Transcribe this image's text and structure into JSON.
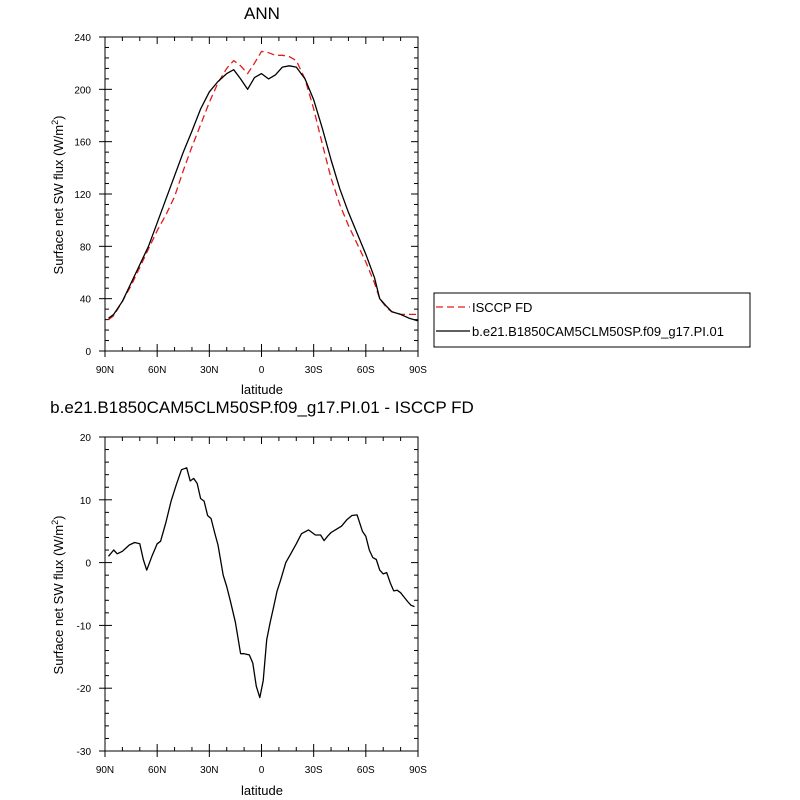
{
  "chart_data": [
    {
      "type": "line",
      "title": "ANN",
      "xlabel": "latitude",
      "ylabel": "Surface net SW flux (W/m",
      "ylabel_superscript": "2",
      "ylabel_suffix": ")",
      "x_ticks": [
        90,
        60,
        30,
        0,
        -30,
        -60,
        -90
      ],
      "x_tick_labels": [
        "90N",
        "60N",
        "30N",
        "0",
        "30S",
        "60S",
        "90S"
      ],
      "xlim": [
        90,
        -90
      ],
      "ylim": [
        0,
        240
      ],
      "y_ticks": [
        0,
        40,
        80,
        120,
        160,
        200,
        240
      ],
      "y_tick_labels": [
        "0",
        "40",
        "80",
        "120",
        "160",
        "200",
        "240"
      ],
      "legend_position": "right",
      "series": [
        {
          "name": "ISCCP FD",
          "color": "#e41a1c",
          "dash": "dashed",
          "x": [
            88,
            85,
            80,
            75,
            70,
            65,
            60,
            55,
            50,
            45,
            40,
            35,
            30,
            25,
            20,
            16,
            12,
            8,
            4,
            0,
            -4,
            -8,
            -12,
            -16,
            -20,
            -25,
            -30,
            -35,
            -40,
            -45,
            -50,
            -55,
            -60,
            -65,
            -68,
            -72,
            -75,
            -80,
            -85,
            -90
          ],
          "values": [
            24,
            27,
            38,
            50,
            64,
            78,
            92,
            104,
            118,
            138,
            156,
            173,
            190,
            205,
            216,
            222,
            218,
            212,
            220,
            229,
            228,
            226,
            226,
            225,
            222,
            208,
            185,
            158,
            132,
            112,
            96,
            82,
            68,
            52,
            40,
            33,
            30,
            28,
            28,
            28
          ]
        },
        {
          "name": "b.e21.B1850CAM5CLM50SP.f09_g17.PI.01",
          "color": "#000000",
          "dash": "solid",
          "x": [
            88,
            85,
            80,
            75,
            70,
            65,
            60,
            55,
            50,
            45,
            40,
            35,
            30,
            25,
            20,
            16,
            12,
            8,
            4,
            0,
            -4,
            -8,
            -12,
            -16,
            -20,
            -25,
            -30,
            -35,
            -40,
            -45,
            -50,
            -55,
            -60,
            -65,
            -68,
            -72,
            -75,
            -80,
            -85,
            -90
          ],
          "values": [
            25,
            28,
            38,
            52,
            66,
            80,
            98,
            116,
            134,
            152,
            168,
            185,
            198,
            206,
            212,
            215,
            208,
            200,
            209,
            212,
            208,
            211,
            217,
            218,
            217,
            208,
            192,
            170,
            146,
            124,
            106,
            90,
            74,
            56,
            40,
            34,
            30,
            28,
            25,
            23
          ]
        }
      ]
    },
    {
      "type": "line",
      "title": "b.e21.B1850CAM5CLM50SP.f09_g17.PI.01 - ISCCP FD",
      "xlabel": "latitude",
      "ylabel": "Surface net SW flux (W/m",
      "ylabel_superscript": "2",
      "ylabel_suffix": ")",
      "x_ticks": [
        90,
        60,
        30,
        0,
        -30,
        -60,
        -90
      ],
      "x_tick_labels": [
        "90N",
        "60N",
        "30N",
        "0",
        "30S",
        "60S",
        "90S"
      ],
      "xlim": [
        90,
        -90
      ],
      "ylim": [
        -30,
        20
      ],
      "y_ticks": [
        -30,
        -20,
        -10,
        0,
        10,
        20
      ],
      "y_tick_labels": [
        "-30",
        "-20",
        "-10",
        "0",
        "10",
        "20"
      ],
      "series": [
        {
          "name": "",
          "color": "#000000",
          "dash": "solid",
          "x": [
            88,
            85,
            83,
            80,
            76,
            73,
            70,
            68,
            66,
            63,
            60,
            58,
            55,
            52,
            49,
            46,
            43,
            41,
            39,
            37,
            35,
            33,
            31,
            29,
            27,
            25,
            22,
            20,
            18,
            15,
            12,
            10,
            7,
            5,
            3,
            1,
            -1,
            -3,
            -5,
            -7,
            -9,
            -11,
            -14,
            -17,
            -20,
            -23,
            -27,
            -31,
            -34,
            -36,
            -38,
            -40,
            -43,
            -46,
            -49,
            -52,
            -55,
            -58,
            -60,
            -62,
            -64,
            -66,
            -68,
            -70,
            -72,
            -74,
            -76,
            -78,
            -80,
            -82,
            -84,
            -86,
            -88
          ],
          "values": [
            1.0,
            2.0,
            1.4,
            1.8,
            2.8,
            3.2,
            3.0,
            0.5,
            -1.2,
            1.0,
            3.0,
            3.4,
            6.4,
            9.8,
            12.4,
            14.8,
            15.1,
            13.0,
            13.4,
            12.6,
            10.2,
            9.8,
            7.5,
            7.0,
            4.8,
            2.8,
            -2.0,
            -3.8,
            -6.0,
            -9.5,
            -14.5,
            -14.5,
            -14.7,
            -16.0,
            -19.7,
            -21.5,
            -18.8,
            -12.3,
            -9.5,
            -7.0,
            -4.5,
            -2.8,
            0.0,
            1.5,
            3.0,
            4.6,
            5.2,
            4.4,
            4.4,
            3.5,
            4.2,
            4.8,
            5.3,
            5.8,
            6.8,
            7.5,
            7.6,
            5.0,
            4.2,
            2.0,
            0.8,
            0.5,
            -1.2,
            -1.8,
            -1.6,
            -3.2,
            -4.5,
            -4.4,
            -4.8,
            -5.5,
            -6.2,
            -6.8,
            -7.0
          ]
        }
      ]
    }
  ]
}
